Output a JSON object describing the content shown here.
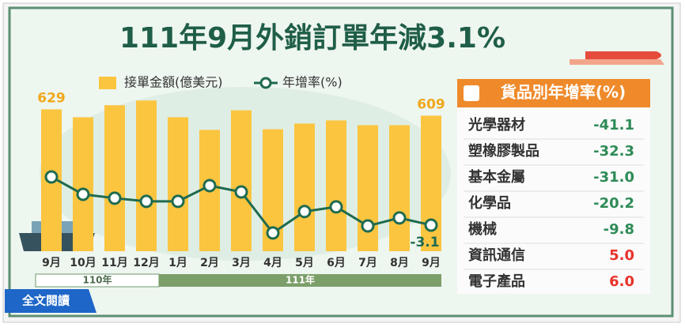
{
  "chart_data": {
    "type": "bar_line",
    "title": "111年9月外銷訂單年減3.1%",
    "categories": [
      "9月",
      "10月",
      "11月",
      "12月",
      "1月",
      "2月",
      "3月",
      "4月",
      "5月",
      "6月",
      "7月",
      "8月",
      "9月"
    ],
    "year_groups": [
      "110年",
      "111年"
    ],
    "series": [
      {
        "name": "接單金額(億美元)",
        "color": "#fbc540",
        "type": "bar",
        "values": [
          629,
          604,
          642,
          657,
          604,
          564,
          626,
          566,
          584,
          594,
          579,
          579,
          609
        ]
      },
      {
        "name": "年增率(%)",
        "color": "#1f6b4f",
        "type": "line",
        "axis": "y2",
        "values": [
          25.7,
          15.3,
          13.0,
          11.1,
          11.1,
          20.5,
          16.7,
          -7.8,
          5.0,
          7.8,
          -3.6,
          1.2,
          -3.1
        ]
      }
    ],
    "ylim": [
      180,
      700
    ],
    "y2lim": [
      -18.7,
      79.5
    ]
  },
  "table": {
    "title": "貨品別年增率(%)",
    "rows": [
      {
        "name": "光學器材",
        "value": "-41.1"
      },
      {
        "name": "塑橡膠製品",
        "value": "-32.3"
      },
      {
        "name": "基本金屬",
        "value": "-31.0"
      },
      {
        "name": "化學品",
        "value": "-20.2"
      },
      {
        "name": "機械",
        "value": "-9.8"
      },
      {
        "name": "資訊通信",
        "value": "5.0"
      },
      {
        "name": "電子產品",
        "value": "6.0"
      }
    ]
  },
  "button": "全文閱讀"
}
